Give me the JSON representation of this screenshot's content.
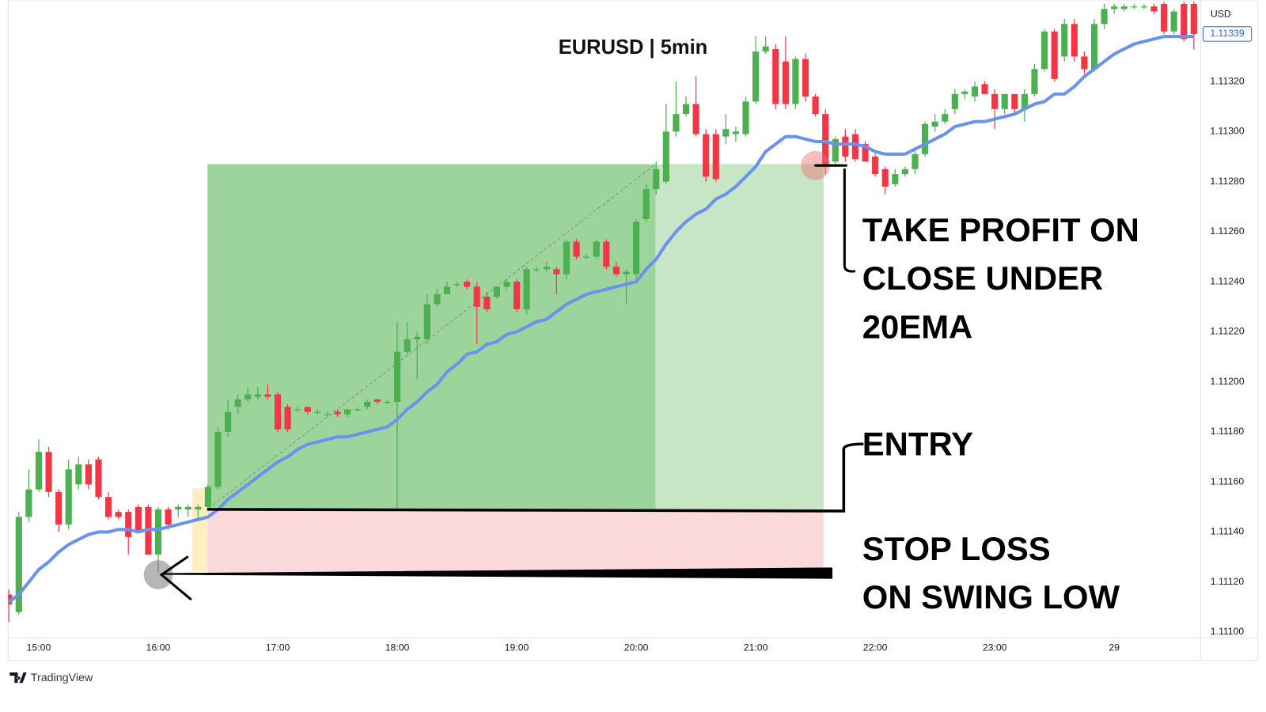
{
  "chart_data": {
    "type": "candlestick",
    "title": "EURUSD | 5min",
    "currency": "USD",
    "last_price": 1.11339,
    "categories": [
      null,
      null,
      null,
      "15:00",
      null,
      null,
      null,
      null,
      null,
      null,
      null,
      null,
      null,
      null,
      null,
      "16:00",
      null,
      null,
      null,
      null,
      null,
      null,
      null,
      null,
      null,
      null,
      null,
      "17:00",
      null,
      null,
      null,
      null,
      null,
      null,
      null,
      null,
      null,
      null,
      null,
      "18:00",
      null,
      null,
      null,
      null,
      null,
      null,
      null,
      null,
      null,
      null,
      null,
      "19:00",
      null,
      null,
      null,
      null,
      null,
      null,
      null,
      null,
      null,
      null,
      null,
      "20:00",
      null,
      null,
      null,
      null,
      null,
      null,
      null,
      null,
      null,
      null,
      null,
      "21:00",
      null,
      null,
      null,
      null,
      null,
      null,
      null,
      null,
      null,
      null,
      null,
      "22:00",
      null,
      null,
      null,
      null,
      null,
      null,
      null,
      null,
      null,
      null,
      null,
      "23:00",
      null,
      null,
      null,
      null,
      null,
      null,
      null,
      null,
      null,
      null,
      null,
      "29",
      null,
      null,
      null,
      null,
      null,
      null,
      null,
      null
    ],
    "open": [
      1.11115,
      1.11108,
      1.11146,
      1.11157,
      1.11172,
      1.11156,
      1.11143,
      1.11159,
      1.11167,
      1.11169,
      1.11154,
      1.11148,
      1.11148,
      1.1115,
      1.1115,
      1.11131,
      1.11149,
      1.11149,
      1.11149,
      1.11149,
      1.1115,
      1.11158,
      1.1118,
      1.1119,
      1.11193,
      1.11194,
      1.11195,
      1.11195,
      1.1119,
      1.11189,
      1.1119,
      1.11188,
      1.11187,
      1.11188,
      1.11187,
      1.11189,
      1.1119,
      1.11193,
      1.11192,
      1.11192,
      1.11212,
      1.11217,
      1.11217,
      1.11231,
      1.11235,
      1.11239,
      1.1124,
      1.11238,
      1.11234,
      1.11234,
      1.11238,
      1.1124,
      1.11229,
      1.11245,
      1.11245,
      1.11245,
      1.11243,
      1.11256,
      1.1125,
      1.1125,
      1.11256,
      1.11246,
      1.11243,
      1.11243,
      1.11265,
      1.11277,
      1.1128,
      1.113,
      1.11307,
      1.11311,
      1.11299,
      1.11299,
      1.11298,
      1.11299,
      1.11299,
      1.11312,
      1.11332,
      1.11333,
      1.11328,
      1.11311,
      1.11329,
      1.11314,
      1.11307,
      1.11288,
      1.11298,
      1.11299,
      1.11295,
      1.1129,
      1.11285,
      1.11279,
      1.11283,
      1.11285,
      1.11291,
      1.11302,
      1.11304,
      1.11309,
      1.11315,
      1.11314,
      1.11319,
      1.11315,
      1.11309,
      1.11315,
      1.11309,
      1.11315,
      1.11325,
      1.1134,
      1.1133,
      1.11343,
      1.1133,
      1.11325,
      1.11343,
      1.11349,
      1.11349,
      1.1135,
      1.1135,
      1.1135,
      1.11351,
      1.1134,
      1.11351,
      1.11351
    ],
    "high": [
      1.11117,
      1.11148,
      1.11165,
      1.11177,
      1.11174,
      1.11157,
      1.11169,
      1.1117,
      1.11169,
      1.1117,
      1.11156,
      1.11149,
      1.11149,
      1.11151,
      1.11151,
      1.1115,
      1.1115,
      1.11151,
      1.11151,
      1.11151,
      1.11159,
      1.11182,
      1.11193,
      1.11195,
      1.11198,
      1.11198,
      1.11199,
      1.11196,
      1.11191,
      1.1119,
      1.1119,
      1.11189,
      1.11188,
      1.11189,
      1.11189,
      1.1119,
      1.11193,
      1.11193,
      1.11193,
      1.11224,
      1.11224,
      1.1122,
      1.11235,
      1.11237,
      1.1124,
      1.1124,
      1.11241,
      1.1124,
      1.11236,
      1.11238,
      1.11241,
      1.11241,
      1.11246,
      1.11246,
      1.11248,
      1.11246,
      1.11257,
      1.11257,
      1.11251,
      1.11257,
      1.11257,
      1.11248,
      1.11245,
      1.11265,
      1.11279,
      1.11288,
      1.11311,
      1.1132,
      1.11314,
      1.11322,
      1.11301,
      1.11301,
      1.11307,
      1.11302,
      1.11314,
      1.11338,
      1.11338,
      1.11335,
      1.11338,
      1.1133,
      1.11331,
      1.11315,
      1.11309,
      1.11298,
      1.11301,
      1.11301,
      1.11296,
      1.11291,
      1.11286,
      1.11285,
      1.11286,
      1.11293,
      1.11304,
      1.11307,
      1.11309,
      1.11317,
      1.11317,
      1.1132,
      1.1132,
      1.11317,
      1.11315,
      1.11315,
      1.11317,
      1.11327,
      1.11341,
      1.11341,
      1.11345,
      1.11345,
      1.11332,
      1.11345,
      1.11351,
      1.11351,
      1.11351,
      1.11351,
      1.11351,
      1.11351,
      1.11352,
      1.11349,
      1.11352,
      1.11352
    ],
    "low": [
      1.11104,
      1.11107,
      1.11144,
      1.11156,
      1.11154,
      1.1114,
      1.11141,
      1.11157,
      1.11157,
      1.11153,
      1.11145,
      1.11145,
      1.11131,
      1.1114,
      1.11131,
      1.11124,
      1.11141,
      1.11146,
      1.11146,
      1.11145,
      1.11149,
      1.11157,
      1.11178,
      1.11187,
      1.11192,
      1.11193,
      1.11193,
      1.1118,
      1.1118,
      1.11188,
      1.11187,
      1.11187,
      1.11186,
      1.11186,
      1.11186,
      1.11188,
      1.11189,
      1.11191,
      1.11191,
      1.11149,
      1.11211,
      1.11201,
      1.11215,
      1.1123,
      1.11235,
      1.11238,
      1.11237,
      1.11215,
      1.11228,
      1.11233,
      1.11237,
      1.11228,
      1.11227,
      1.11244,
      1.11244,
      1.11235,
      1.11241,
      1.11249,
      1.11249,
      1.11249,
      1.11245,
      1.11242,
      1.11231,
      1.11241,
      1.11264,
      1.11275,
      1.11279,
      1.11298,
      1.11306,
      1.11298,
      1.1128,
      1.1128,
      1.11295,
      1.11296,
      1.11298,
      1.11311,
      1.11331,
      1.11309,
      1.11309,
      1.11309,
      1.11312,
      1.11306,
      1.11283,
      1.11286,
      1.11288,
      1.11288,
      1.11288,
      1.11282,
      1.11275,
      1.11278,
      1.11282,
      1.11283,
      1.1129,
      1.113,
      1.11303,
      1.11307,
      1.11313,
      1.11312,
      1.11315,
      1.11301,
      1.11307,
      1.11307,
      1.11304,
      1.11314,
      1.11324,
      1.1132,
      1.11328,
      1.11328,
      1.11323,
      1.11324,
      1.11341,
      1.11347,
      1.11348,
      1.11349,
      1.11349,
      1.11347,
      1.11339,
      1.11339,
      1.11336,
      1.11333
    ],
    "close": [
      1.11111,
      1.11146,
      1.11157,
      1.11172,
      1.11156,
      1.11143,
      1.11165,
      1.11167,
      1.11159,
      1.11154,
      1.11146,
      1.11146,
      1.11138,
      1.1114,
      1.11131,
      1.11149,
      1.11143,
      1.1115,
      1.1115,
      1.1115,
      1.11158,
      1.1118,
      1.11188,
      1.11193,
      1.11195,
      1.11195,
      1.11194,
      1.11181,
      1.11181,
      1.11189,
      1.11188,
      1.11188,
      1.11187,
      1.11187,
      1.11189,
      1.11189,
      1.11192,
      1.11192,
      1.11192,
      1.11212,
      1.11217,
      1.11218,
      1.11231,
      1.11235,
      1.11238,
      1.11239,
      1.11238,
      1.1123,
      1.11229,
      1.11238,
      1.1124,
      1.11229,
      1.11245,
      1.11245,
      1.11246,
      1.11243,
      1.11256,
      1.1125,
      1.1125,
      1.11256,
      1.11246,
      1.11243,
      1.11244,
      1.11264,
      1.11277,
      1.11285,
      1.113,
      1.11307,
      1.11311,
      1.11299,
      1.11282,
      1.11281,
      1.11301,
      1.113,
      1.11312,
      1.11332,
      1.11334,
      1.11311,
      1.11311,
      1.11329,
      1.11314,
      1.11307,
      1.11286,
      1.11297,
      1.1129,
      1.11289,
      1.11288,
      1.11283,
      1.11278,
      1.11283,
      1.11285,
      1.11291,
      1.11303,
      1.11304,
      1.11307,
      1.11315,
      1.11316,
      1.11318,
      1.11315,
      1.11309,
      1.11315,
      1.11309,
      1.11315,
      1.11325,
      1.1134,
      1.11321,
      1.11343,
      1.1133,
      1.11325,
      1.11343,
      1.11349,
      1.1135,
      1.1135,
      1.1135,
      1.1135,
      1.11348,
      1.1134,
      1.11348,
      1.11337,
      1.11339
    ],
    "up_color": "#4caf50",
    "down_color": "#f23645",
    "ema": {
      "color": "#6b93ee",
      "values": [
        1.11112,
        1.11115,
        1.1112,
        1.11125,
        1.11128,
        1.11132,
        1.11135,
        1.11137,
        1.11139,
        1.1114,
        1.1114,
        1.11141,
        1.11141,
        1.1114,
        1.11141,
        1.11141,
        1.11142,
        1.11143,
        1.11144,
        1.11145,
        1.11146,
        1.11149,
        1.11153,
        1.11156,
        1.11159,
        1.11162,
        1.11165,
        1.11168,
        1.1117,
        1.11173,
        1.11175,
        1.11176,
        1.11177,
        1.11178,
        1.11178,
        1.11179,
        1.1118,
        1.11181,
        1.11182,
        1.11185,
        1.11189,
        1.11192,
        1.11196,
        1.11199,
        1.11204,
        1.11207,
        1.11211,
        1.11212,
        1.11215,
        1.11216,
        1.11219,
        1.1122,
        1.11222,
        1.11224,
        1.11225,
        1.11228,
        1.11231,
        1.11233,
        1.11235,
        1.11236,
        1.11237,
        1.11238,
        1.11239,
        1.1124,
        1.11245,
        1.11249,
        1.11255,
        1.1126,
        1.11264,
        1.11267,
        1.11269,
        1.11273,
        1.11275,
        1.11278,
        1.11282,
        1.11286,
        1.11292,
        1.11295,
        1.11298,
        1.11298,
        1.11297,
        1.11296,
        1.11296,
        1.11295,
        1.11295,
        1.11295,
        1.11294,
        1.11292,
        1.11291,
        1.11291,
        1.11291,
        1.11293,
        1.11295,
        1.11297,
        1.11299,
        1.11302,
        1.11303,
        1.11304,
        1.11304,
        1.11305,
        1.11306,
        1.11307,
        1.11309,
        1.11311,
        1.11312,
        1.11315,
        1.11315,
        1.11318,
        1.11322,
        1.11325,
        1.11328,
        1.11331,
        1.11333,
        1.11335,
        1.11336,
        1.11337,
        1.11338,
        1.11338,
        1.11338,
        1.11338
      ]
    },
    "position": {
      "entry": 1.11149,
      "take_profit": 1.11287,
      "stop_loss": 1.11123
    },
    "ylim": [
      1.11098,
      1.11353
    ],
    "yticks": [
      {
        "value": 1.111,
        "label": "1.11100"
      },
      {
        "value": 1.1112,
        "label": "1.11120"
      },
      {
        "value": 1.1114,
        "label": "1.11140"
      },
      {
        "value": 1.1116,
        "label": "1.11160"
      },
      {
        "value": 1.1118,
        "label": "1.11180"
      },
      {
        "value": 1.112,
        "label": "1.11200"
      },
      {
        "value": 1.1122,
        "label": "1.11220"
      },
      {
        "value": 1.1124,
        "label": "1.11240"
      },
      {
        "value": 1.1126,
        "label": "1.11260"
      },
      {
        "value": 1.1128,
        "label": "1.11280"
      },
      {
        "value": 1.113,
        "label": "1.11300"
      },
      {
        "value": 1.1132,
        "label": "1.11320"
      }
    ],
    "grid": false,
    "annotations": [
      {
        "lines": [
          "TAKE PROFIT ON",
          "CLOSE UNDER",
          "20EMA"
        ]
      },
      {
        "lines": [
          "ENTRY"
        ]
      },
      {
        "lines": [
          "STOP LOSS",
          "ON SWING LOW"
        ]
      }
    ]
  },
  "brand": "TradingView"
}
